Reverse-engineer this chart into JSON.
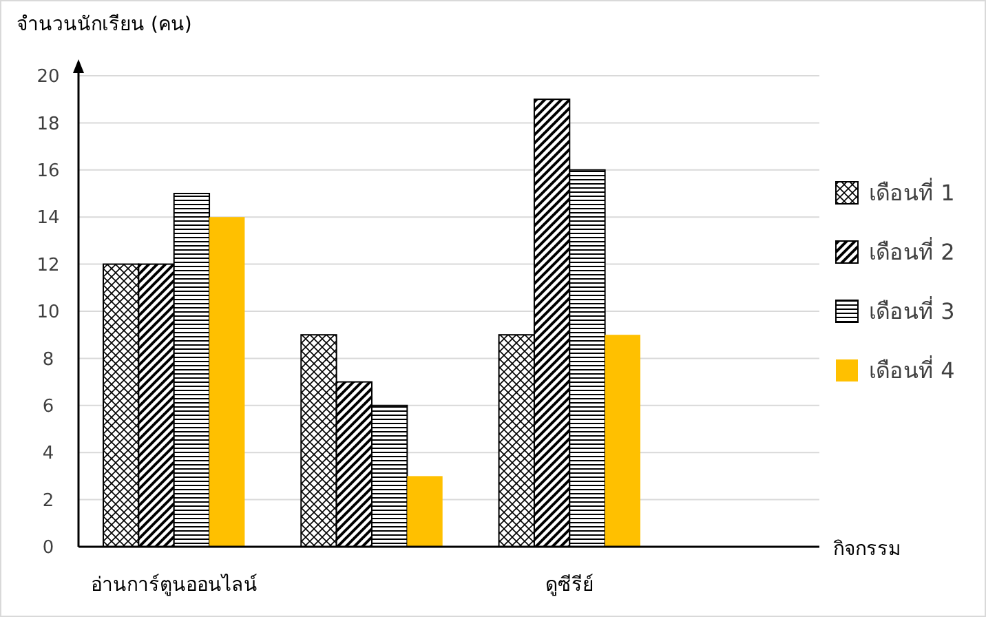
{
  "chart_data": {
    "type": "bar",
    "ylabel": "จำนวนนักเรียน (คน)",
    "xlabel": "กิจกรรม",
    "categories": [
      "อ่านการ์ตูนออนไลน์",
      null,
      "ดูซีรีย์"
    ],
    "series": [
      {
        "name": "เดือนที่ 1",
        "color": "#000000",
        "values": [
          12,
          9,
          9
        ]
      },
      {
        "name": "เดือนที่ 2",
        "color": "#000000",
        "values": [
          12,
          7,
          19
        ]
      },
      {
        "name": "เดือนที่ 3",
        "color": "#000000",
        "values": [
          15,
          6,
          16
        ]
      },
      {
        "name": "เดือนที่ 4",
        "color": "#ffc000",
        "values": [
          14,
          3,
          9
        ]
      }
    ],
    "ylim": [
      0,
      20
    ],
    "yticks": [
      0,
      2,
      4,
      6,
      8,
      10,
      12,
      14,
      16,
      18,
      20
    ],
    "grid": "y",
    "legend": "right"
  }
}
